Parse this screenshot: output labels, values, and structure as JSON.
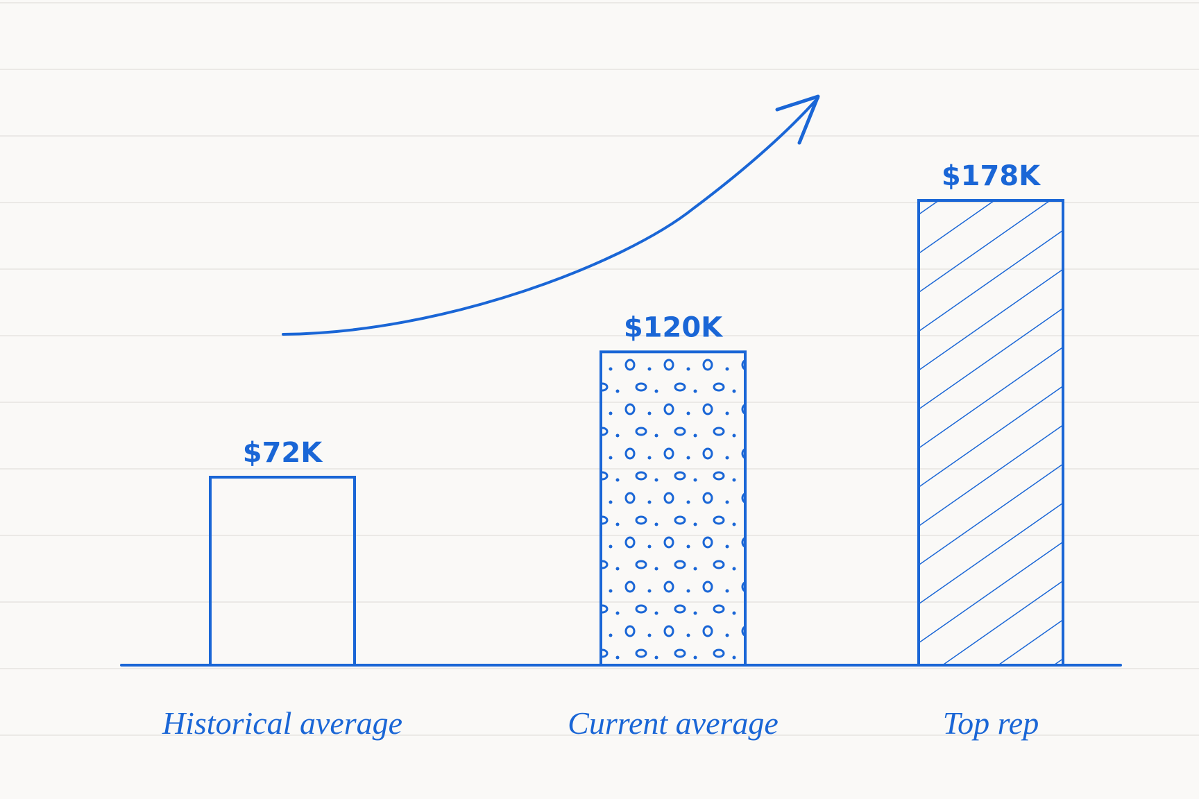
{
  "chart_data": {
    "type": "bar",
    "categories": [
      "Historical average",
      "Current average",
      "Top rep"
    ],
    "values": [
      72,
      120,
      178
    ],
    "value_labels": [
      "$72K",
      "$120K",
      "$178K"
    ],
    "color": "#1a66d6",
    "fills": [
      "none",
      "dots",
      "hatch"
    ]
  }
}
